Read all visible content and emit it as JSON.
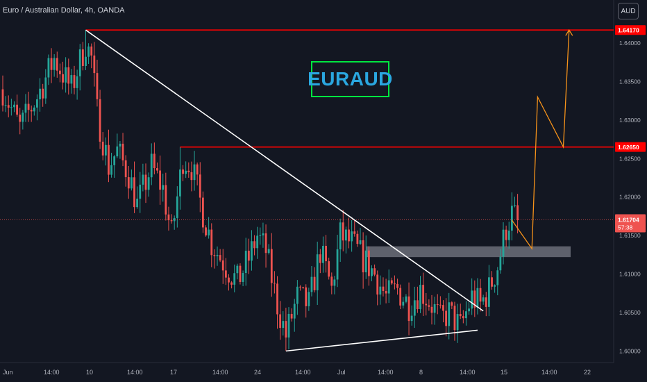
{
  "header": {
    "title": "Euro / Australian Dollar, 4h, OANDA"
  },
  "currency_button": {
    "label": "AUD"
  },
  "annotation": {
    "ticker_label": "EURAUD"
  },
  "colors": {
    "background": "#131722",
    "up": "#26a69a",
    "down": "#ef5350",
    "level_line": "#ff0000",
    "trendline": "#ffffff",
    "projection": "#f7931a",
    "zone": "#787b86",
    "label_box": "#ff0000",
    "ticker_text": "#2aa7e0",
    "ticker_border": "#00e640"
  },
  "chart_data": {
    "type": "candlestick",
    "symbol": "EURAUD",
    "timeframe": "4h",
    "x_tick_labels": [
      "Jun",
      "14:00",
      "10",
      "14:00",
      "17",
      "14:00",
      "24",
      "14:00",
      "Jul",
      "14:00",
      "8",
      "14:00",
      "15",
      "14:00",
      "22"
    ],
    "y_tick_labels": [
      "1.60000",
      "1.60500",
      "1.61000",
      "1.61500",
      "1.62000",
      "1.62500",
      "1.63000",
      "1.63500",
      "1.64000"
    ],
    "y_ticks": [
      1.6,
      1.605,
      1.61,
      1.615,
      1.62,
      1.625,
      1.63,
      1.635,
      1.64
    ],
    "ylim": [
      1.5985,
      1.6456
    ],
    "price_labels": [
      {
        "price": 1.6417,
        "text": "1.64170"
      },
      {
        "price": 1.6265,
        "text": "1.62650"
      }
    ],
    "current_price": {
      "price": 1.61704,
      "text": "1.61704",
      "countdown": "57:38"
    },
    "resistance_levels": [
      1.6417,
      1.6265
    ],
    "demand_zone": [
      1.6122,
      1.6136
    ],
    "candle_count": 192,
    "candle_anchors": [
      [
        0,
        1.634
      ],
      [
        6,
        1.629
      ],
      [
        12,
        1.633
      ],
      [
        18,
        1.638
      ],
      [
        24,
        1.634
      ],
      [
        29,
        1.64
      ],
      [
        31,
        1.638
      ],
      [
        33,
        1.631
      ],
      [
        37,
        1.624
      ],
      [
        40,
        1.626
      ],
      [
        44,
        1.623
      ],
      [
        47,
        1.619
      ],
      [
        52,
        1.624
      ],
      [
        56,
        1.621
      ],
      [
        59,
        1.615
      ],
      [
        63,
        1.625
      ],
      [
        66,
        1.624
      ],
      [
        70,
        1.618
      ],
      [
        73,
        1.614
      ],
      [
        78,
        1.611
      ],
      [
        82,
        1.609
      ],
      [
        86,
        1.612
      ],
      [
        89,
        1.615
      ],
      [
        92,
        1.613
      ],
      [
        96,
        1.606
      ],
      [
        99,
        1.602
      ],
      [
        103,
        1.607
      ],
      [
        107,
        1.606
      ],
      [
        111,
        1.613
      ],
      [
        115,
        1.608
      ],
      [
        118,
        1.615
      ],
      [
        122,
        1.614
      ],
      [
        126,
        1.612
      ],
      [
        130,
        1.61
      ],
      [
        134,
        1.607
      ],
      [
        138,
        1.608
      ],
      [
        142,
        1.606
      ],
      [
        146,
        1.608
      ],
      [
        150,
        1.606
      ],
      [
        153,
        1.604
      ],
      [
        156,
        1.605
      ],
      [
        160,
        1.603
      ],
      [
        164,
        1.607
      ],
      [
        167,
        1.606
      ],
      [
        170,
        1.608
      ],
      [
        173,
        1.611
      ],
      [
        176,
        1.616
      ],
      [
        178,
        1.6178
      ],
      [
        180,
        1.617
      ]
    ],
    "candle_wicks_extra": [
      {
        "i": 29,
        "high": 1.6417
      },
      {
        "i": 62,
        "high": 1.6265
      },
      {
        "i": 99,
        "low": 1.6
      },
      {
        "i": 118,
        "high": 1.6172
      }
    ],
    "trendlines": [
      {
        "from": [
          29,
          1.6417
        ],
        "to": [
          168,
          1.6052
        ]
      },
      {
        "from": [
          99,
          1.6
        ],
        "to": [
          166,
          1.6027
        ]
      }
    ],
    "projection_path": [
      [
        178,
        1.617
      ],
      [
        185,
        1.6133
      ],
      [
        187,
        1.633
      ],
      [
        196,
        1.6265
      ],
      [
        198,
        1.6417
      ]
    ]
  }
}
